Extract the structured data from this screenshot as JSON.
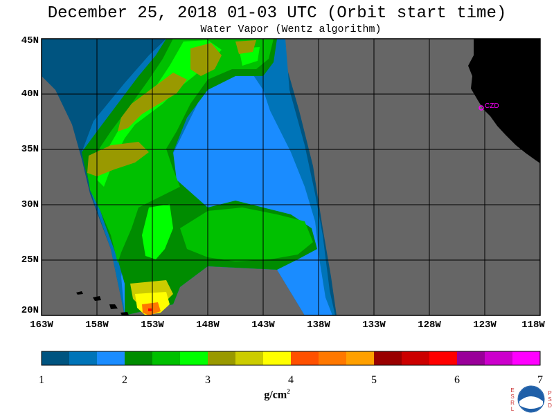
{
  "header": {
    "title": "December 25, 2018  01-03 UTC  (Orbit start time)",
    "subtitle": "Water Vapor (Wentz algorithm)"
  },
  "map": {
    "lat_labels": [
      "45N",
      "40N",
      "35N",
      "30N",
      "25N",
      "20N"
    ],
    "lon_labels": [
      "163W",
      "158W",
      "153W",
      "148W",
      "143W",
      "138W",
      "133W",
      "128W",
      "123W",
      "118W"
    ],
    "station_label": "CZD",
    "colors": {
      "land": "#000000",
      "no_data": "#666666",
      "grid": "#000000",
      "station": "#ff00ff"
    }
  },
  "colorbar": {
    "ticks": [
      "1",
      "2",
      "3",
      "4",
      "5",
      "6",
      "7"
    ],
    "unit": "g/cm",
    "unit_sup": "2",
    "colors": [
      "#005480",
      "#0074b8",
      "#1a8cff",
      "#008c00",
      "#00c000",
      "#00ff00",
      "#999900",
      "#cccc00",
      "#ffff00",
      "#ff5000",
      "#ff7800",
      "#ffa000",
      "#990000",
      "#cc0000",
      "#ff0000",
      "#990099",
      "#cc00cc",
      "#ff00ff"
    ]
  },
  "logo": {
    "left_letters": "ESRL",
    "right_letters": "PSD",
    "center": "NOAA"
  }
}
